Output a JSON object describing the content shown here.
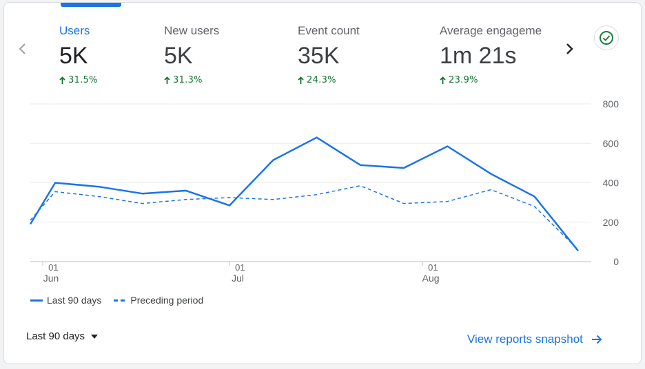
{
  "metrics": [
    {
      "name": "Users",
      "value": "5K",
      "change": "31.5%",
      "direction": "up",
      "active": true
    },
    {
      "name": "New users",
      "value": "5K",
      "change": "31.3%",
      "direction": "up",
      "active": false
    },
    {
      "name": "Event count",
      "value": "35K",
      "change": "24.3%",
      "direction": "up",
      "active": false
    },
    {
      "name": "Average engageme",
      "value": "1m 21s",
      "change": "23.9%",
      "direction": "up",
      "active": false
    }
  ],
  "icons": {
    "prev": "chevron-left-icon",
    "next": "chevron-right-icon",
    "status": "check-circle-icon",
    "dropdown": "caret-down-icon",
    "link_arrow": "arrow-right-icon"
  },
  "colors": {
    "accent": "#1a73e8",
    "positive": "#137333",
    "status_check": "#188038"
  },
  "chart_data": {
    "type": "line",
    "x_ticks": [
      {
        "day": "01",
        "month": "Jun",
        "date": "2023-06-01"
      },
      {
        "day": "01",
        "month": "Jul",
        "date": "2023-07-01"
      },
      {
        "day": "01",
        "month": "Aug",
        "date": "2023-08-01"
      }
    ],
    "y_ticks": [
      "800",
      "600",
      "400",
      "200",
      "0"
    ],
    "ylim": [
      0,
      800
    ],
    "xlim": [
      "2023-05-30",
      "2023-08-27"
    ],
    "y_axis_side": "right",
    "grid": true,
    "legend_position": "bottom-left",
    "series": [
      {
        "name": "Last 90 days",
        "style": "solid",
        "color": "#1a73e8",
        "x": [
          "2023-05-30",
          "2023-06-03",
          "2023-06-10",
          "2023-06-17",
          "2023-06-24",
          "2023-07-01",
          "2023-07-08",
          "2023-07-15",
          "2023-07-22",
          "2023-07-29",
          "2023-08-05",
          "2023-08-12",
          "2023-08-19",
          "2023-08-26"
        ],
        "values": [
          190,
          400,
          380,
          345,
          360,
          285,
          515,
          630,
          490,
          475,
          585,
          445,
          330,
          55
        ]
      },
      {
        "name": "Preceding period",
        "style": "dashed",
        "color": "#1a73e8",
        "x": [
          "2023-05-30",
          "2023-06-03",
          "2023-06-10",
          "2023-06-17",
          "2023-06-24",
          "2023-07-01",
          "2023-07-08",
          "2023-07-15",
          "2023-07-22",
          "2023-07-29",
          "2023-08-05",
          "2023-08-12",
          "2023-08-19",
          "2023-08-26"
        ],
        "values": [
          210,
          355,
          330,
          295,
          315,
          325,
          315,
          340,
          385,
          295,
          305,
          365,
          280,
          60
        ]
      }
    ]
  },
  "footer": {
    "range_label": "Last 90 days",
    "snapshot_label": "View reports snapshot"
  }
}
